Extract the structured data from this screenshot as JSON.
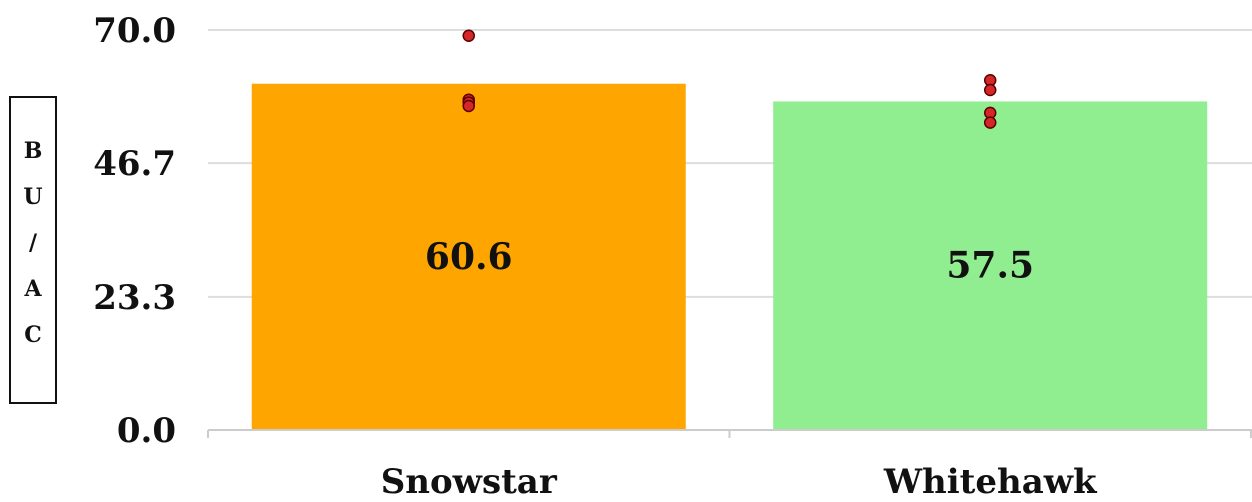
{
  "chart_data": {
    "type": "bar",
    "categories": [
      "Snowstar",
      "Whitehawk"
    ],
    "values": [
      60.6,
      57.5
    ],
    "data_labels": [
      "60.6",
      "57.5"
    ],
    "ylabel": "BU/AC",
    "ylim": [
      0,
      70
    ],
    "y_ticks": [
      "0.0",
      "23.3",
      "46.7",
      "70.0"
    ],
    "y_tick_values": [
      0,
      23.3,
      46.7,
      70
    ],
    "grid": true,
    "colors": [
      "#ffa500",
      "#90ee90"
    ],
    "points": [
      [
        69.0,
        57.8,
        57.3,
        56.7
      ],
      [
        61.2,
        59.5,
        55.5,
        53.8
      ]
    ],
    "point_color": "#d62728"
  }
}
